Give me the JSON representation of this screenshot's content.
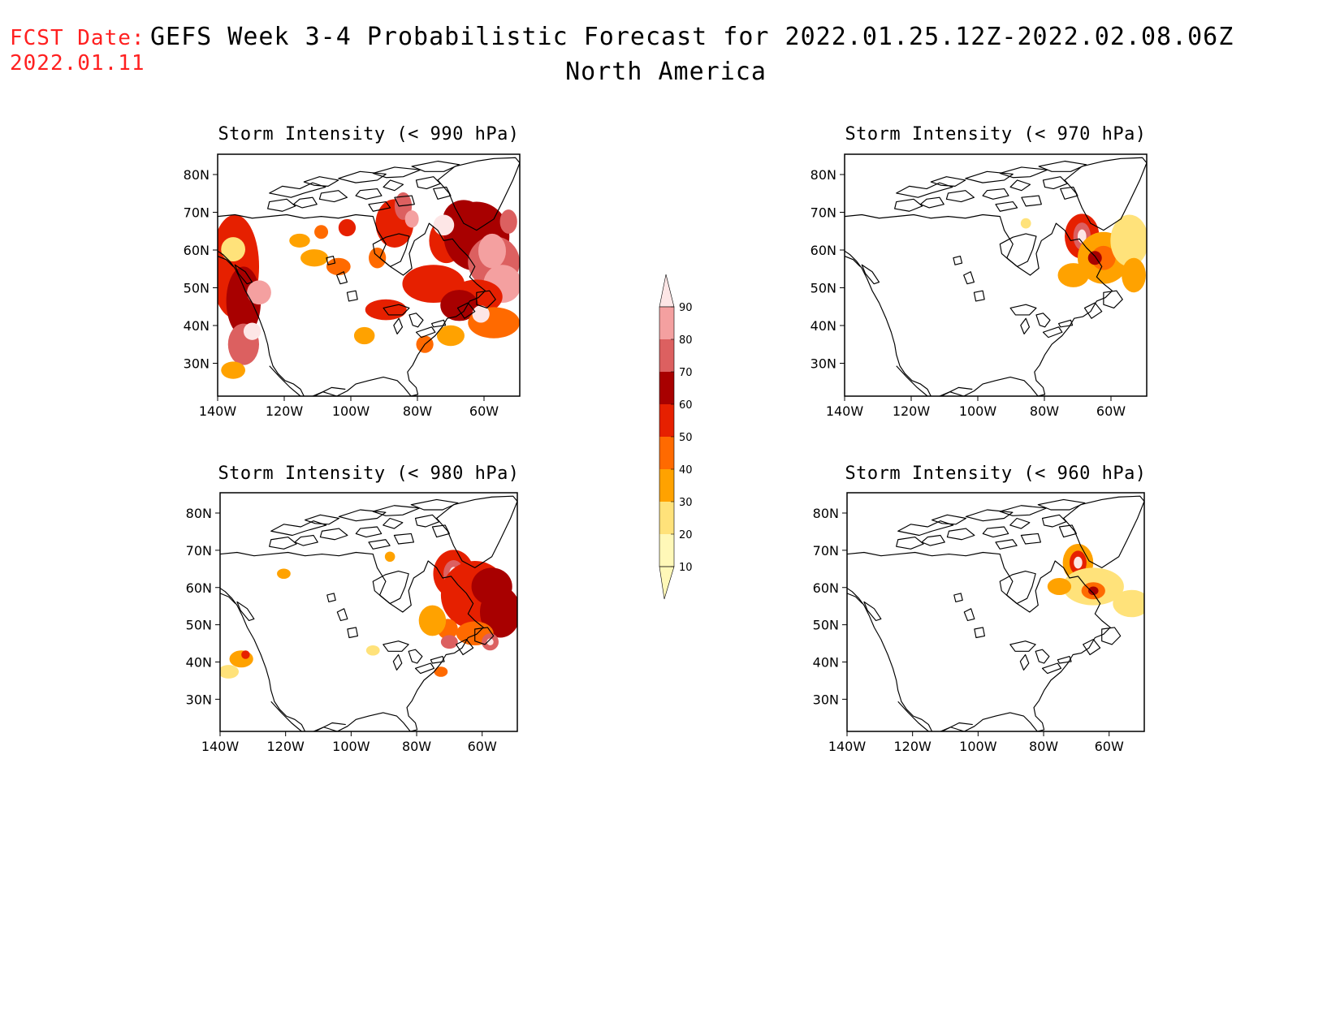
{
  "header": {
    "fcst_label": "FCST Date:",
    "fcst_date": "2022.01.11",
    "title": "GEFS Week 3-4 Probabilistic Forecast for 2022.01.25.12Z-2022.02.08.06Z",
    "subtitle": "North America"
  },
  "panels": [
    {
      "id": "p990",
      "title": "Storm Intensity (< 990 hPa)",
      "coverage": "high"
    },
    {
      "id": "p970",
      "title": "Storm Intensity (< 970 hPa)",
      "coverage": "east-medium"
    },
    {
      "id": "p980",
      "title": "Storm Intensity (< 980 hPa)",
      "coverage": "east-high"
    },
    {
      "id": "p960",
      "title": "Storm Intensity (< 960 hPa)",
      "coverage": "east-low"
    }
  ],
  "axes": {
    "lat_labels": [
      "80N",
      "70N",
      "60N",
      "50N",
      "40N",
      "30N"
    ],
    "lon_labels": [
      "140W",
      "120W",
      "100W",
      "80W",
      "60W"
    ]
  },
  "colorbar": {
    "levels": [
      "10",
      "20",
      "30",
      "40",
      "50",
      "60",
      "70",
      "80",
      "90"
    ],
    "colors": [
      "#fff8b8",
      "#ffe27a",
      "#ffa200",
      "#ff6a00",
      "#e62000",
      "#a80000",
      "#dc6060",
      "#f4a0a0",
      "#fde6e6"
    ]
  }
}
